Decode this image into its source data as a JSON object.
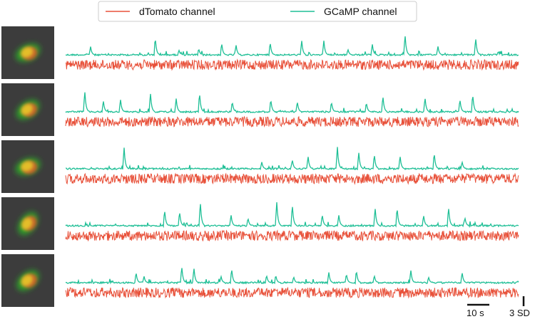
{
  "chart_data": {
    "type": "line",
    "legend": {
      "placement": "top-center",
      "entries": [
        {
          "label": "dTomato channel",
          "color": "#e8513a"
        },
        {
          "label": "GCaMP channel",
          "color": "#1fbf96"
        }
      ]
    },
    "scale_bars": {
      "time_label": "10 s",
      "amplitude_label": "3 SD"
    },
    "rows": [
      {
        "gcamp_spikes_s": [
          5.5,
          19.7,
          25.0,
          29.3,
          34.4,
          37.6,
          45.1,
          52.1,
          57.0,
          62.3,
          67.7,
          74.9,
          82.2,
          90.5
        ],
        "gcamp_spike_amp_sd": [
          2.0,
          5.8,
          1.2,
          2.1,
          3.4,
          2.6,
          3.7,
          3.6,
          3.4,
          1.5,
          2.6,
          5.5,
          2.0,
          4.4
        ]
      },
      {
        "gcamp_spikes_s": [
          4.2,
          8.3,
          12.1,
          18.7,
          24.4,
          29.5,
          36.7,
          45.2,
          51.1,
          58.6,
          66.3,
          70.0,
          79.3,
          87.0,
          89.8
        ],
        "gcamp_spike_amp_sd": [
          5.6,
          2.9,
          3.1,
          4.9,
          3.2,
          5.8,
          3.5,
          4.3,
          2.9,
          3.3,
          3.2,
          4.5,
          4.0,
          3.6,
          5.6
        ]
      },
      {
        "gcamp_spikes_s": [
          12.9,
          43.3,
          50.0,
          53.5,
          60.0,
          64.7,
          68.1,
          73.8,
          81.3,
          87.5
        ],
        "gcamp_spike_amp_sd": [
          5.2,
          1.6,
          2.6,
          3.3,
          5.1,
          4.1,
          4.2,
          3.5,
          5.0,
          1.9
        ]
      },
      {
        "gcamp_spikes_s": [
          21.8,
          25.1,
          29.7,
          36.5,
          40.2,
          46.6,
          50.0,
          56.6,
          60.3,
          68.3,
          73.1,
          79.0,
          84.5,
          88.1
        ],
        "gcamp_spike_amp_sd": [
          4.6,
          4.2,
          6.5,
          2.8,
          2.4,
          5.8,
          6.0,
          3.3,
          2.6,
          4.7,
          5.9,
          2.8,
          5.1,
          2.4
        ]
      },
      {
        "gcamp_spikes_s": [
          15.5,
          17.3,
          25.6,
          28.3,
          34.3,
          36.6,
          44.3,
          46.3,
          50.3,
          58.1,
          61.9,
          64.1,
          68.1,
          76.2,
          80.1,
          87.5
        ],
        "gcamp_spike_amp_sd": [
          3.0,
          1.6,
          4.5,
          3.9,
          1.6,
          4.1,
          2.3,
          2.6,
          1.8,
          2.5,
          3.0,
          4.2,
          2.1,
          3.1,
          1.5,
          2.8
        ]
      }
    ]
  }
}
